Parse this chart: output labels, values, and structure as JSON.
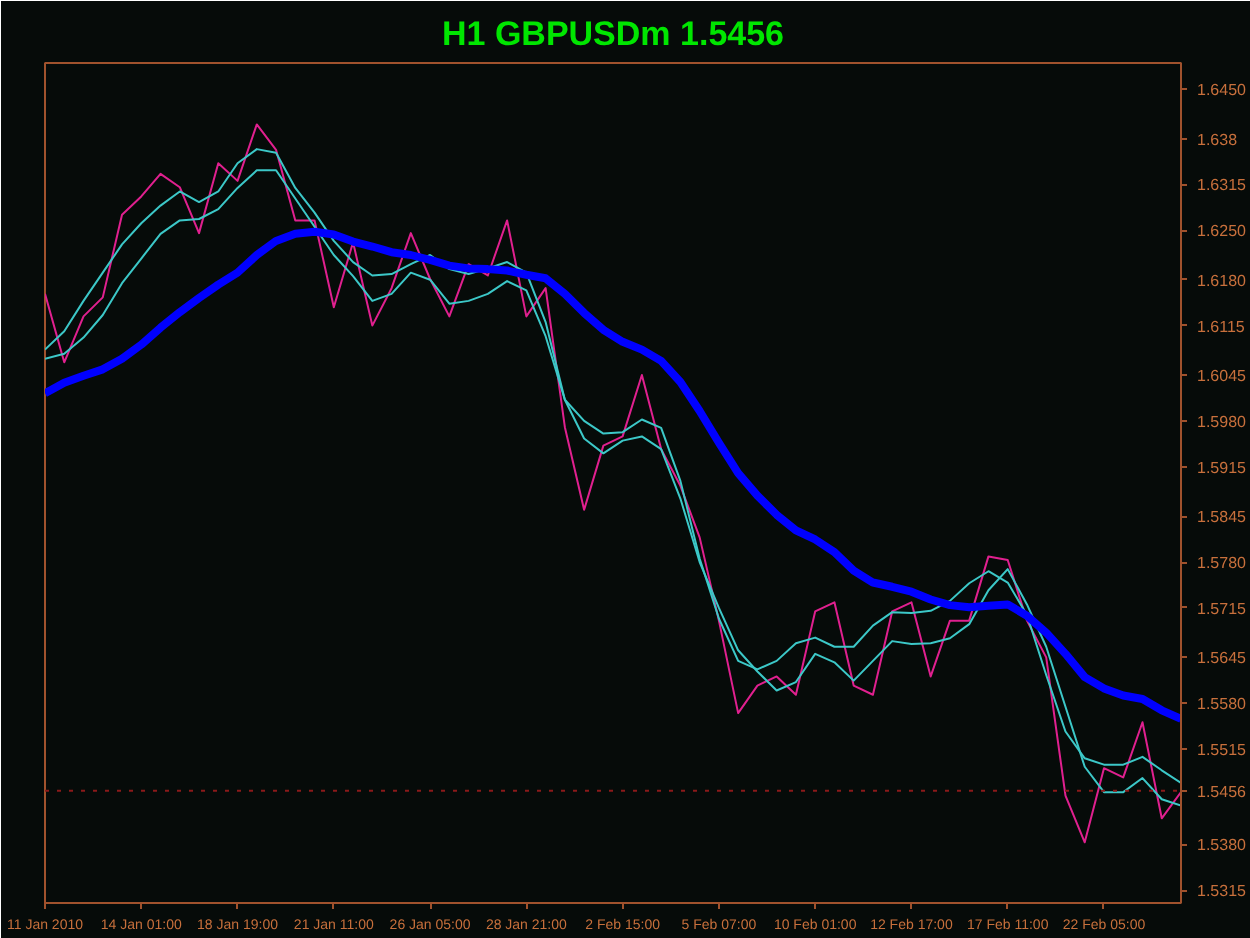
{
  "chart_data": {
    "type": "line",
    "title": "H1 GBPUSDm 1.5456",
    "categories": [
      "11 Jan 2010",
      null,
      null,
      null,
      null,
      "14 Jan 01:00",
      null,
      null,
      null,
      null,
      "18 Jan 19:00",
      null,
      null,
      null,
      null,
      "21 Jan 11:00",
      null,
      null,
      null,
      null,
      "26 Jan 05:00",
      null,
      null,
      null,
      null,
      "28 Jan 21:00",
      null,
      null,
      null,
      null,
      "2 Feb 15:00",
      null,
      null,
      null,
      null,
      "5 Feb 07:00",
      null,
      null,
      null,
      null,
      "10 Feb 01:00",
      null,
      null,
      null,
      null,
      "12 Feb 17:00",
      null,
      null,
      null,
      null,
      "17 Feb 11:00",
      null,
      null,
      null,
      null,
      "22 Feb 05:00",
      null,
      null,
      null,
      null
    ],
    "ylim": [
      1.5297,
      1.6487
    ],
    "yticks": [
      {
        "value": 1.645,
        "label": "1.6450"
      },
      1.638,
      1.6315,
      {
        "value": 1.625,
        "label": "1.6250"
      },
      {
        "value": 1.618,
        "label": "1.6180"
      },
      1.6115,
      1.6045,
      {
        "value": 1.598,
        "label": "1.5980"
      },
      1.5915,
      1.5845,
      {
        "value": 1.578,
        "label": "1.5780"
      },
      1.5715,
      1.5645,
      {
        "value": 1.558,
        "label": "1.5580"
      },
      1.5515,
      {
        "value": 1.538,
        "label": "1.5380"
      },
      1.5315
    ],
    "ref_lines": [
      {
        "axis": "y",
        "value": 1.5456,
        "label": "1.5456",
        "color": "#8b1a1a",
        "line_style": "dotted"
      }
    ],
    "grid": false,
    "marker": "none",
    "line_style": "solid",
    "series": [
      {
        "color": "#e0208f",
        "values": [
          1.616,
          1.6063,
          1.6128,
          1.6155,
          1.6272,
          1.6298,
          1.633,
          1.6311,
          1.6246,
          1.6345,
          1.632,
          1.64,
          1.6364,
          1.6264,
          1.6264,
          1.6141,
          1.6233,
          1.6115,
          1.6168,
          1.6246,
          1.6181,
          1.6128,
          1.6202,
          1.6186,
          1.6264,
          1.6128,
          1.6168,
          1.5971,
          1.5854,
          1.5945,
          1.5958,
          1.6045,
          1.594,
          1.5888,
          1.5815,
          1.5697,
          1.5566,
          1.5605,
          1.5618,
          1.5592,
          1.571,
          1.5723,
          1.5605,
          1.5592,
          1.571,
          1.5723,
          1.5618,
          1.5697,
          1.5697,
          1.5788,
          1.5783,
          1.5697,
          1.5645,
          1.5449,
          1.5383,
          1.5488,
          1.5475,
          1.5553,
          1.5417,
          1.5454
        ]
      },
      {
        "color": "#3cc8c8",
        "values": [
          1.6081,
          1.6107,
          1.615,
          1.619,
          1.623,
          1.626,
          1.6285,
          1.6305,
          1.629,
          1.6305,
          1.6345,
          1.6365,
          1.636,
          1.631,
          1.6275,
          1.6235,
          1.6205,
          1.6186,
          1.6188,
          1.6202,
          1.6215,
          1.6195,
          1.6188,
          1.6196,
          1.6205,
          1.619,
          1.612,
          1.601,
          1.598,
          1.5962,
          1.5964,
          1.5982,
          1.597,
          1.5895,
          1.5785,
          1.57,
          1.564,
          1.5628,
          1.564,
          1.5665,
          1.5673,
          1.566,
          1.566,
          1.569,
          1.5709,
          1.5708,
          1.5711,
          1.5725,
          1.575,
          1.5767,
          1.5751,
          1.5705,
          1.562,
          1.554,
          1.5502,
          1.5493,
          1.5493,
          1.5504,
          1.5485,
          1.5467
        ]
      },
      {
        "color": "#3cc8c8",
        "values": [
          1.6068,
          1.6075,
          1.6098,
          1.613,
          1.6175,
          1.621,
          1.6245,
          1.6264,
          1.6266,
          1.628,
          1.631,
          1.6335,
          1.6335,
          1.6295,
          1.6255,
          1.6215,
          1.6185,
          1.615,
          1.616,
          1.619,
          1.618,
          1.6146,
          1.615,
          1.616,
          1.6178,
          1.6165,
          1.61,
          1.601,
          1.5955,
          1.5934,
          1.5952,
          1.5958,
          1.594,
          1.587,
          1.578,
          1.5715,
          1.5655,
          1.5625,
          1.5598,
          1.561,
          1.565,
          1.5638,
          1.5612,
          1.564,
          1.5668,
          1.5664,
          1.5665,
          1.5672,
          1.5692,
          1.574,
          1.577,
          1.572,
          1.566,
          1.5575,
          1.549,
          1.5454,
          1.5454,
          1.5474,
          1.5444,
          1.5435
        ]
      },
      {
        "color": "#0000ff",
        "values": [
          1.6019,
          1.6034,
          1.6044,
          1.6053,
          1.6068,
          1.6088,
          1.6112,
          1.6134,
          1.6154,
          1.6173,
          1.619,
          1.6215,
          1.6235,
          1.6245,
          1.6248,
          1.6244,
          1.6234,
          1.6227,
          1.6219,
          1.6215,
          1.6208,
          1.62,
          1.6196,
          1.6195,
          1.6193,
          1.6187,
          1.6182,
          1.616,
          1.6133,
          1.6109,
          1.6092,
          1.6081,
          1.6065,
          1.6035,
          1.5994,
          1.5949,
          1.5906,
          1.5874,
          1.5847,
          1.5825,
          1.5812,
          1.5794,
          1.5768,
          1.5751,
          1.5745,
          1.5738,
          1.5727,
          1.5719,
          1.5716,
          1.5718,
          1.572,
          1.5704,
          1.568,
          1.565,
          1.5617,
          1.5601,
          1.5591,
          1.5586,
          1.557,
          1.5558
        ]
      }
    ]
  }
}
